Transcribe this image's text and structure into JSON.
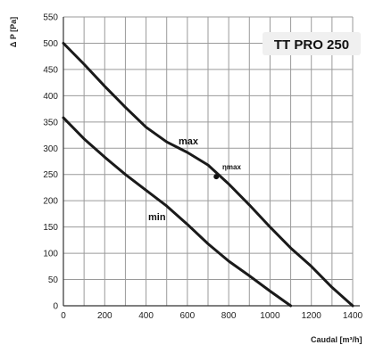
{
  "chart_data": {
    "type": "line",
    "title": "TT PRO 250",
    "xlabel": "Caudal [m³/h]",
    "ylabel": "Δ P [Pa]",
    "xlim": [
      0,
      1400
    ],
    "ylim": [
      0,
      550
    ],
    "xticks": [
      0,
      200,
      400,
      600,
      800,
      1000,
      1200,
      1400
    ],
    "yticks": [
      0,
      50,
      100,
      150,
      200,
      250,
      300,
      350,
      400,
      450,
      500,
      550
    ],
    "grid": true,
    "series": [
      {
        "name": "max",
        "x": [
          0,
          100,
          200,
          300,
          400,
          500,
          600,
          700,
          800,
          900,
          1000,
          1100,
          1200,
          1300,
          1400
        ],
        "y": [
          500,
          460,
          418,
          378,
          340,
          312,
          292,
          268,
          232,
          192,
          150,
          110,
          75,
          35,
          0
        ]
      },
      {
        "name": "min",
        "x": [
          0,
          100,
          200,
          300,
          400,
          500,
          600,
          700,
          800,
          900,
          1000,
          1100
        ],
        "y": [
          358,
          318,
          283,
          250,
          220,
          190,
          155,
          118,
          85,
          57,
          28,
          0
        ]
      }
    ],
    "annotations": [
      {
        "text": "ηmax",
        "x": 740,
        "y": 246
      }
    ]
  }
}
